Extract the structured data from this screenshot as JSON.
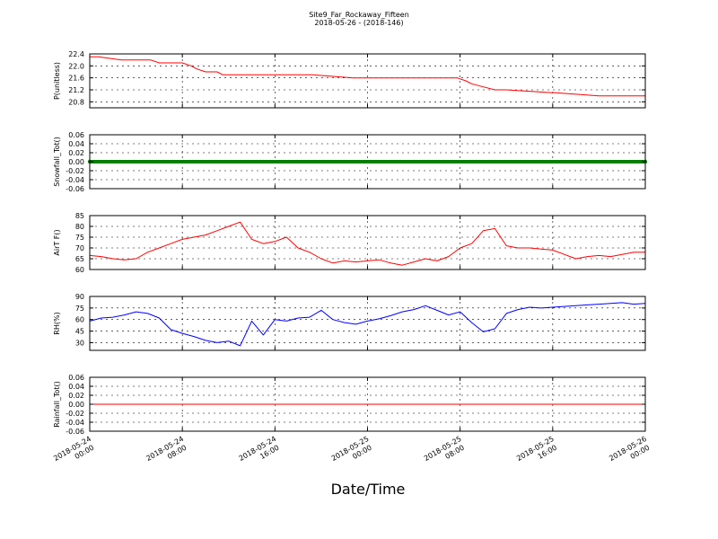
{
  "chart_data": {
    "type": "line",
    "title": "Site9_Far_Rockaway_Fifteen",
    "subtitle": "2018-05-26 - (2018-146)",
    "xlabel": "Date/Time",
    "x_range": [
      "2018-05-24 00:00",
      "2018-05-26 00:00"
    ],
    "x_ticks": [
      {
        "value": "2018-05-24 00:00",
        "date": "2018-05-24",
        "time": "00:00"
      },
      {
        "value": "2018-05-24 08:00",
        "date": "2018-05-24",
        "time": "08:00"
      },
      {
        "value": "2018-05-24 16:00",
        "date": "2018-05-24",
        "time": "16:00"
      },
      {
        "value": "2018-05-25 00:00",
        "date": "2018-05-25",
        "time": "00:00"
      },
      {
        "value": "2018-05-25 08:00",
        "date": "2018-05-25",
        "time": "08:00"
      },
      {
        "value": "2018-05-25 16:00",
        "date": "2018-05-25",
        "time": "16:00"
      },
      {
        "value": "2018-05-26 00:00",
        "date": "2018-05-26",
        "time": "00:00"
      }
    ],
    "grid": true,
    "panels": [
      {
        "ylabel": "P(unitless)",
        "ylim": [
          20.6,
          22.4
        ],
        "yticks": [
          20.8,
          21.2,
          21.6,
          22.0,
          22.4
        ],
        "ytick_labels": [
          "20.8",
          "21.2",
          "21.6",
          "22.0",
          "22.4"
        ],
        "series": [
          {
            "color": "#ff0000",
            "marker": false,
            "x": [
              "2018-05-24 00:00",
              "2018-05-24 00:45",
              "2018-05-24 02:45",
              "2018-05-24 03:00",
              "2018-05-24 04:30",
              "2018-05-24 04:45",
              "2018-05-24 05:15",
              "2018-05-24 06:00",
              "2018-05-24 07:00",
              "2018-05-24 08:00",
              "2018-05-24 08:45",
              "2018-05-24 09:15",
              "2018-05-24 10:00",
              "2018-05-24 10:30",
              "2018-05-24 11:00",
              "2018-05-24 11:30",
              "2018-05-24 13:15",
              "2018-05-24 13:30",
              "2018-05-24 14:00",
              "2018-05-24 17:00",
              "2018-05-24 17:15",
              "2018-05-24 17:30",
              "2018-05-24 19:00",
              "2018-05-24 19:15",
              "2018-05-24 22:45",
              "2018-05-24 23:00",
              "2018-05-24 23:15",
              "2018-05-24 23:30",
              "2018-05-25 01:45",
              "2018-05-25 02:00",
              "2018-05-25 02:15",
              "2018-05-25 02:30",
              "2018-05-25 06:00",
              "2018-05-25 06:15",
              "2018-05-25 07:30",
              "2018-05-25 07:45",
              "2018-05-25 08:30",
              "2018-05-25 09:00",
              "2018-05-25 10:00",
              "2018-05-25 11:00",
              "2018-05-25 12:00",
              "2018-05-25 16:00",
              "2018-05-25 16:15",
              "2018-05-25 20:00",
              "2018-05-25 20:30",
              "2018-05-25 21:30",
              "2018-05-25 22:00",
              "2018-05-25 22:30",
              "2018-05-25 23:15",
              "2018-05-26 00:00"
            ],
            "values": [
              22.3,
              22.3,
              22.2,
              22.2,
              22.2,
              22.2,
              22.2,
              22.1,
              22.1,
              22.1,
              22.0,
              21.9,
              21.8,
              21.8,
              21.8,
              21.7,
              21.7,
              21.7,
              21.7,
              21.7,
              21.7,
              21.7,
              21.7,
              21.7,
              21.6,
              21.6,
              21.6,
              21.6,
              21.6,
              21.6,
              21.6,
              21.6,
              21.6,
              21.6,
              21.6,
              21.6,
              21.5,
              21.4,
              21.3,
              21.2,
              21.2,
              21.1,
              21.1,
              21.0,
              21.0,
              21.0,
              21.0,
              21.0,
              21.0,
              21.0
            ]
          }
        ]
      },
      {
        "ylabel": "Snowfall_Tot()",
        "ylim": [
          -0.06,
          0.06
        ],
        "yticks": [
          -0.06,
          -0.04,
          -0.02,
          0.0,
          0.02,
          0.04,
          0.06
        ],
        "ytick_labels": [
          "-0.06",
          "-0.04",
          "-0.02",
          "0.00",
          "0.02",
          "0.04",
          "0.06"
        ],
        "series": [
          {
            "color": "#008000",
            "marker": true,
            "x": [
              "2018-05-24 00:00",
              "2018-05-26 00:00"
            ],
            "values": [
              0.0,
              0.0
            ]
          }
        ]
      },
      {
        "ylabel": "AirT F()",
        "ylim": [
          60,
          85
        ],
        "yticks": [
          60,
          65,
          70,
          75,
          80,
          85
        ],
        "ytick_labels": [
          "60",
          "65",
          "70",
          "75",
          "80",
          "85"
        ],
        "series": [
          {
            "color": "#ff0000",
            "marker": false,
            "x": [
              "2018-05-24 00:00",
              "2018-05-24 01:00",
              "2018-05-24 02:00",
              "2018-05-24 03:00",
              "2018-05-24 04:00",
              "2018-05-24 05:00",
              "2018-05-24 06:00",
              "2018-05-24 07:00",
              "2018-05-24 08:00",
              "2018-05-24 09:00",
              "2018-05-24 10:00",
              "2018-05-24 11:00",
              "2018-05-24 12:00",
              "2018-05-24 13:00",
              "2018-05-24 14:00",
              "2018-05-24 15:00",
              "2018-05-24 16:00",
              "2018-05-24 17:00",
              "2018-05-24 18:00",
              "2018-05-24 19:00",
              "2018-05-24 20:00",
              "2018-05-24 21:00",
              "2018-05-24 22:00",
              "2018-05-24 23:00",
              "2018-05-25 00:00",
              "2018-05-25 01:00",
              "2018-05-25 02:00",
              "2018-05-25 03:00",
              "2018-05-25 04:00",
              "2018-05-25 05:00",
              "2018-05-25 06:00",
              "2018-05-25 07:00",
              "2018-05-25 08:00",
              "2018-05-25 09:00",
              "2018-05-25 10:00",
              "2018-05-25 11:00",
              "2018-05-25 12:00",
              "2018-05-25 13:00",
              "2018-05-25 14:00",
              "2018-05-25 15:00",
              "2018-05-25 16:00",
              "2018-05-25 17:00",
              "2018-05-25 18:00",
              "2018-05-25 19:00",
              "2018-05-25 20:00",
              "2018-05-25 21:00",
              "2018-05-25 22:00",
              "2018-05-25 23:00",
              "2018-05-26 00:00"
            ],
            "values": [
              66.5,
              66,
              65,
              64.5,
              65,
              68,
              70,
              72,
              74,
              75,
              76,
              78,
              80,
              82,
              74,
              72,
              73,
              75,
              70,
              68,
              65,
              63,
              64,
              63.5,
              64,
              64.5,
              63,
              62,
              63.5,
              65,
              64,
              66,
              70,
              72,
              78,
              79,
              71,
              70,
              70,
              69.5,
              69,
              67,
              65,
              66,
              66.5,
              66,
              67,
              68,
              68
            ]
          }
        ]
      },
      {
        "ylabel": "RH(%)",
        "ylim": [
          20,
          90
        ],
        "yticks": [
          30,
          45,
          60,
          75,
          90
        ],
        "ytick_labels": [
          "30",
          "45",
          "60",
          "75",
          "90"
        ],
        "series": [
          {
            "color": "#0000ff",
            "marker": false,
            "x": [
              "2018-05-24 00:00",
              "2018-05-24 01:00",
              "2018-05-24 02:00",
              "2018-05-24 03:00",
              "2018-05-24 04:00",
              "2018-05-24 05:00",
              "2018-05-24 06:00",
              "2018-05-24 07:00",
              "2018-05-24 08:00",
              "2018-05-24 09:00",
              "2018-05-24 10:00",
              "2018-05-24 11:00",
              "2018-05-24 12:00",
              "2018-05-24 13:00",
              "2018-05-24 14:00",
              "2018-05-24 15:00",
              "2018-05-24 16:00",
              "2018-05-24 17:00",
              "2018-05-24 18:00",
              "2018-05-24 19:00",
              "2018-05-24 20:00",
              "2018-05-24 21:00",
              "2018-05-24 22:00",
              "2018-05-24 23:00",
              "2018-05-25 00:00",
              "2018-05-25 01:00",
              "2018-05-25 02:00",
              "2018-05-25 03:00",
              "2018-05-25 04:00",
              "2018-05-25 05:00",
              "2018-05-25 06:00",
              "2018-05-25 07:00",
              "2018-05-25 08:00",
              "2018-05-25 09:00",
              "2018-05-25 10:00",
              "2018-05-25 11:00",
              "2018-05-25 12:00",
              "2018-05-25 13:00",
              "2018-05-25 14:00",
              "2018-05-25 15:00",
              "2018-05-25 16:00",
              "2018-05-25 17:00",
              "2018-05-25 18:00",
              "2018-05-25 19:00",
              "2018-05-25 20:00",
              "2018-05-25 21:00",
              "2018-05-25 22:00",
              "2018-05-25 23:00",
              "2018-05-26 00:00"
            ],
            "values": [
              58,
              62,
              63,
              66,
              70,
              68,
              62,
              47,
              42,
              38,
              33,
              30,
              32,
              26,
              58,
              40,
              60,
              58,
              62,
              63,
              72,
              60,
              56,
              54,
              58,
              61,
              65,
              70,
              73,
              78,
              72,
              66,
              70,
              56,
              44,
              48,
              68,
              73,
              76,
              75,
              76,
              77,
              78,
              79,
              80,
              81,
              82,
              80,
              81
            ]
          }
        ]
      },
      {
        "ylabel": "Rainfall_Tot()",
        "ylim": [
          -0.06,
          0.06
        ],
        "yticks": [
          -0.06,
          -0.04,
          -0.02,
          0.0,
          0.02,
          0.04,
          0.06
        ],
        "ytick_labels": [
          "-0.06",
          "-0.04",
          "-0.02",
          "0.00",
          "0.02",
          "0.04",
          "0.06"
        ],
        "series": [
          {
            "color": "#ff0000",
            "marker": false,
            "x": [
              "2018-05-24 00:00",
              "2018-05-26 00:00"
            ],
            "values": [
              0.0,
              0.0
            ]
          }
        ]
      }
    ]
  }
}
